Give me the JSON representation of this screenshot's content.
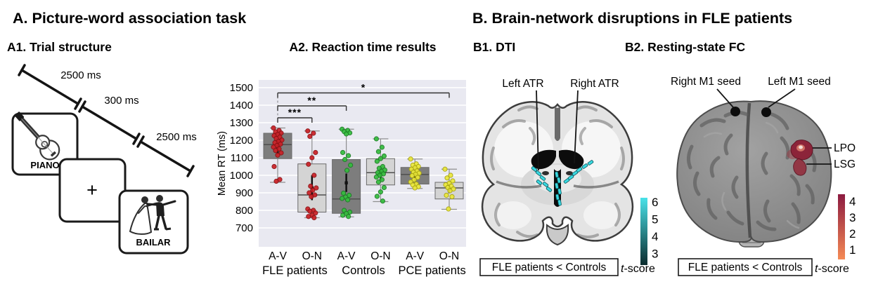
{
  "panel_a": {
    "title": "A. Picture-word association task",
    "a1": {
      "title": "A1. Trial structure",
      "timeline_segments": [
        {
          "duration_label": "2500 ms"
        },
        {
          "duration_label": "300 ms"
        },
        {
          "duration_label": "2500 ms"
        }
      ],
      "cards": [
        {
          "word": "PIANO",
          "image": "guitar-line-drawing"
        },
        {
          "word": "+",
          "image": "fixation-cross"
        },
        {
          "word": "BAILAR",
          "image": "dancing-couple-line-drawing"
        }
      ]
    },
    "a2": {
      "title": "A2. Reaction time results"
    }
  },
  "chart_data": {
    "type": "boxplot",
    "title": "A2. Reaction time results",
    "ylabel": "Mean RT (ms)",
    "ylim": [
      600,
      1560
    ],
    "yticks": [
      700,
      800,
      900,
      1000,
      1100,
      1200,
      1300,
      1400,
      1500
    ],
    "grid": true,
    "plot_bg": "#e9e9f1",
    "grid_color": "#ffffff",
    "groups": [
      {
        "name": "FLE patients",
        "conditions": [
          "A-V",
          "O-N"
        ]
      },
      {
        "name": "Controls",
        "conditions": [
          "A-V",
          "O-N"
        ]
      },
      {
        "name": "PCE patients",
        "conditions": [
          "A-V",
          "O-N"
        ]
      }
    ],
    "boxes": [
      {
        "group": "FLE patients",
        "condition": "A-V",
        "fill": "#7d7d7d",
        "point_color": "#cb2026",
        "point_stroke": "#891114",
        "whisker_low": 960,
        "q1": 1095,
        "median": 1175,
        "q3": 1240,
        "whisker_high": 1270,
        "inner_bar": [
          1120,
          1205
        ],
        "mean": 1163,
        "points": [
          1270,
          1256,
          1248,
          1241,
          1233,
          1226,
          1218,
          1210,
          1201,
          1193,
          1186,
          1178,
          1170,
          1161,
          1151,
          1141,
          1128,
          1115,
          1050,
          976,
          966
        ]
      },
      {
        "group": "FLE patients",
        "condition": "O-N",
        "fill": "#d4d4d4",
        "point_color": "#cb2026",
        "point_stroke": "#891114",
        "whisker_low": 758,
        "q1": 790,
        "median": 888,
        "q3": 1065,
        "whisker_high": 1253,
        "inner_bar": [
          858,
          1000
        ],
        "mean": 929,
        "points": [
          1253,
          1240,
          1222,
          1130,
          1100,
          1063,
          1000,
          938,
          928,
          915,
          900,
          888,
          878,
          808,
          800,
          795,
          785,
          772,
          765,
          758
        ]
      },
      {
        "group": "Controls",
        "condition": "A-V",
        "fill": "#7d7d7d",
        "point_color": "#33bd3c",
        "point_stroke": "#1c7a24",
        "whisker_low": 763,
        "q1": 783,
        "median": 865,
        "q3": 1090,
        "whisker_high": 1263,
        "inner_bar": [
          905,
          1010
        ],
        "mean": 957,
        "points": [
          1263,
          1256,
          1249,
          1242,
          1236,
          1130,
          1112,
          1090,
          1058,
          1028,
          898,
          886,
          876,
          868,
          860,
          800,
          790,
          782,
          772,
          765
        ]
      },
      {
        "group": "Controls",
        "condition": "O-N",
        "fill": "#d4d4d4",
        "point_color": "#33bd3c",
        "point_stroke": "#1c7a24",
        "whisker_low": 850,
        "q1": 945,
        "median": 1015,
        "q3": 1095,
        "whisker_high": 1208,
        "inner_bar": [
          972,
          1048
        ],
        "mean": 1010,
        "points": [
          1208,
          1160,
          1135,
          1110,
          1095,
          1080,
          1050,
          1040,
          1030,
          1022,
          1015,
          1008,
          1000,
          990,
          975,
          962,
          930,
          905,
          880,
          853
        ]
      },
      {
        "group": "PCE patients",
        "condition": "A-V",
        "fill": "#7d7d7d",
        "point_color": "#ebe839",
        "point_stroke": "#a8a411",
        "whisker_low": 925,
        "q1": 950,
        "median": 1005,
        "q3": 1045,
        "whisker_high": 1093,
        "inner_bar": [
          968,
          1030
        ],
        "mean": 1000,
        "points": [
          1093,
          1065,
          1058,
          1050,
          1043,
          1035,
          1025,
          1018,
          1012,
          1005,
          998,
          988,
          975,
          962,
          950,
          945,
          935,
          928
        ]
      },
      {
        "group": "PCE patients",
        "condition": "O-N",
        "fill": "#d4d4d4",
        "point_color": "#ebe839",
        "point_stroke": "#a8a411",
        "whisker_low": 806,
        "q1": 865,
        "median": 928,
        "q3": 960,
        "whisker_high": 1035,
        "inner_bar": [
          898,
          948
        ],
        "mean": 922,
        "points": [
          1035,
          1000,
          985,
          968,
          955,
          946,
          938,
          930,
          922,
          912,
          886,
          878,
          808
        ]
      }
    ],
    "significance": [
      {
        "from_box": 0,
        "to_box": 1,
        "label": "***",
        "y_value": 1328
      },
      {
        "from_box": 0,
        "to_box": 2,
        "label": "**",
        "y_value": 1396
      },
      {
        "from_box": 0,
        "to_box": 5,
        "label": "*",
        "y_value": 1470
      }
    ]
  },
  "panel_b": {
    "title": "B. Brain-network disruptions in FLE patients",
    "b1": {
      "title": "B1. DTI",
      "pointer_labels": [
        "Left ATR",
        "Right ATR"
      ],
      "caption": "FLE patients < Controls",
      "highlight_color": "#3bd8e0",
      "colorbar": {
        "label": "t-score",
        "ticks": [
          6,
          5,
          4,
          3
        ],
        "top_color": "#49e2e9",
        "bottom_color": "#0b2b2d"
      }
    },
    "b2": {
      "title": "B2. Resting-state FC",
      "seed_labels": [
        "Right M1 seed",
        "Left M1 seed"
      ],
      "region_labels": [
        "LPO",
        "LSG"
      ],
      "caption": "FLE patients < Controls",
      "highlight_color": "#8c2138",
      "colorbar": {
        "label": "t-score",
        "ticks": [
          4,
          3,
          2,
          1
        ],
        "top_color": "#8c1b40",
        "bottom_color": "#f58a55"
      }
    }
  }
}
